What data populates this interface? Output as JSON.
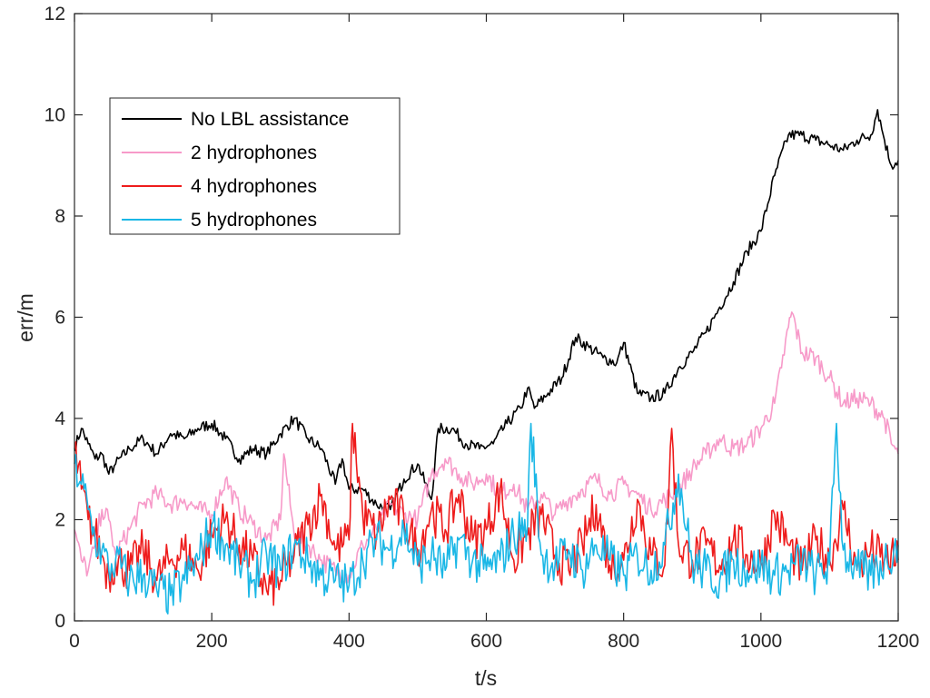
{
  "chart_data": {
    "type": "line",
    "title": "",
    "xlabel": "t/s",
    "ylabel": "err/m",
    "xlim": [
      0,
      1200
    ],
    "ylim": [
      0,
      12
    ],
    "xticks": [
      0,
      200,
      400,
      600,
      800,
      1000,
      1200
    ],
    "yticks": [
      0,
      2,
      4,
      6,
      8,
      10,
      12
    ],
    "grid": false,
    "legend_position": "upper-left",
    "series": [
      {
        "name": "No LBL assistance",
        "color": "#000000",
        "x": [
          0,
          10,
          20,
          30,
          40,
          50,
          60,
          80,
          100,
          120,
          140,
          160,
          180,
          200,
          220,
          240,
          260,
          280,
          300,
          320,
          340,
          360,
          380,
          390,
          400,
          420,
          440,
          460,
          480,
          500,
          520,
          530,
          550,
          570,
          590,
          610,
          630,
          650,
          660,
          670,
          690,
          710,
          730,
          750,
          770,
          790,
          800,
          820,
          840,
          860,
          880,
          900,
          920,
          940,
          960,
          980,
          1000,
          1020,
          1040,
          1060,
          1080,
          1100,
          1120,
          1140,
          1160,
          1170,
          1180,
          1190,
          1200
        ],
        "values": [
          3.4,
          3.8,
          3.5,
          3.2,
          3.3,
          2.9,
          3.1,
          3.4,
          3.6,
          3.3,
          3.7,
          3.6,
          3.8,
          3.9,
          3.6,
          3.2,
          3.4,
          3.3,
          3.7,
          4.0,
          3.6,
          3.4,
          2.7,
          3.2,
          2.6,
          2.6,
          2.3,
          2.2,
          2.8,
          3.1,
          2.4,
          3.8,
          3.8,
          3.5,
          3.4,
          3.5,
          3.9,
          4.2,
          4.6,
          4.2,
          4.5,
          4.8,
          5.6,
          5.4,
          5.2,
          5.1,
          5.5,
          4.5,
          4.4,
          4.5,
          5.0,
          5.3,
          5.7,
          6.2,
          6.7,
          7.3,
          7.7,
          8.8,
          9.6,
          9.6,
          9.5,
          9.4,
          9.3,
          9.5,
          9.6,
          10.1,
          9.5,
          9.0,
          9.1
        ]
      },
      {
        "name": "2 hydrophones",
        "color": "#f79ac9",
        "x": [
          0,
          10,
          20,
          30,
          40,
          50,
          60,
          80,
          100,
          120,
          140,
          160,
          180,
          200,
          220,
          240,
          260,
          280,
          300,
          305,
          320,
          340,
          360,
          380,
          400,
          420,
          440,
          460,
          480,
          500,
          520,
          540,
          560,
          580,
          600,
          620,
          640,
          660,
          680,
          700,
          720,
          740,
          760,
          780,
          800,
          820,
          840,
          860,
          880,
          900,
          920,
          940,
          960,
          980,
          1000,
          1020,
          1030,
          1040,
          1045,
          1060,
          1080,
          1100,
          1120,
          1140,
          1160,
          1180,
          1190,
          1200
        ],
        "values": [
          1.8,
          1.2,
          1.0,
          1.5,
          2.2,
          2.0,
          1.3,
          1.8,
          2.3,
          2.5,
          2.3,
          2.4,
          2.2,
          2.1,
          2.8,
          2.2,
          1.9,
          1.6,
          2.0,
          3.3,
          1.7,
          1.5,
          1.2,
          1.0,
          0.9,
          1.5,
          1.8,
          2.3,
          2.1,
          2.0,
          2.9,
          3.2,
          2.9,
          2.7,
          2.9,
          2.5,
          2.7,
          2.2,
          2.5,
          2.1,
          2.4,
          2.6,
          2.8,
          2.5,
          2.7,
          2.5,
          2.2,
          2.4,
          2.6,
          3.0,
          3.3,
          3.6,
          3.4,
          3.5,
          3.8,
          4.3,
          5.0,
          5.8,
          6.1,
          5.3,
          5.2,
          4.8,
          4.3,
          4.4,
          4.3,
          4.0,
          3.5,
          3.3
        ]
      },
      {
        "name": "4 hydrophones",
        "color": "#ee1c1c",
        "x": [
          0,
          10,
          20,
          30,
          40,
          50,
          60,
          80,
          100,
          120,
          140,
          160,
          180,
          200,
          220,
          240,
          260,
          280,
          300,
          320,
          340,
          360,
          380,
          400,
          405,
          420,
          440,
          460,
          480,
          500,
          520,
          540,
          560,
          580,
          600,
          620,
          640,
          660,
          680,
          700,
          720,
          740,
          760,
          780,
          800,
          820,
          840,
          860,
          870,
          880,
          900,
          920,
          940,
          960,
          980,
          1000,
          1020,
          1040,
          1060,
          1080,
          1100,
          1120,
          1140,
          1160,
          1180,
          1200
        ],
        "values": [
          3.4,
          2.6,
          2.0,
          1.7,
          1.3,
          0.9,
          1.2,
          1.0,
          1.4,
          0.8,
          1.2,
          1.4,
          1.0,
          1.7,
          2.0,
          1.5,
          1.2,
          0.6,
          0.8,
          1.3,
          1.9,
          2.5,
          1.4,
          1.6,
          3.9,
          2.1,
          1.7,
          2.4,
          2.0,
          1.4,
          2.2,
          1.8,
          2.5,
          1.6,
          1.8,
          2.6,
          1.2,
          1.7,
          2.1,
          1.3,
          1.0,
          1.5,
          2.3,
          1.1,
          1.2,
          2.4,
          1.3,
          1.1,
          3.8,
          1.5,
          1.2,
          1.5,
          1.1,
          1.6,
          1.3,
          1.1,
          2.1,
          1.5,
          1.0,
          1.6,
          1.2,
          2.2,
          1.0,
          1.4,
          1.2,
          1.2
        ]
      },
      {
        "name": "5 hydrophones",
        "color": "#1ab7e6",
        "x": [
          0,
          10,
          20,
          30,
          40,
          50,
          60,
          80,
          100,
          120,
          140,
          160,
          180,
          200,
          220,
          240,
          260,
          280,
          300,
          320,
          340,
          360,
          380,
          400,
          420,
          440,
          460,
          480,
          500,
          520,
          540,
          560,
          580,
          600,
          620,
          640,
          660,
          665,
          680,
          700,
          720,
          740,
          760,
          780,
          800,
          820,
          840,
          860,
          880,
          900,
          920,
          940,
          960,
          980,
          1000,
          1020,
          1040,
          1060,
          1080,
          1100,
          1110,
          1120,
          1140,
          1160,
          1180,
          1200
        ],
        "values": [
          3.1,
          2.7,
          2.2,
          1.6,
          1.4,
          1.0,
          1.2,
          0.8,
          0.9,
          0.6,
          0.5,
          0.8,
          1.2,
          1.9,
          1.5,
          1.1,
          0.8,
          1.3,
          1.0,
          1.5,
          1.2,
          0.9,
          0.8,
          0.7,
          1.2,
          1.6,
          1.4,
          1.8,
          1.1,
          1.3,
          1.0,
          1.6,
          1.2,
          1.0,
          1.2,
          1.7,
          1.9,
          3.9,
          1.3,
          1.1,
          1.4,
          1.0,
          1.5,
          1.2,
          0.9,
          1.3,
          1.0,
          1.5,
          2.9,
          1.1,
          1.0,
          0.8,
          1.2,
          1.0,
          1.1,
          0.9,
          1.0,
          1.2,
          0.9,
          1.1,
          3.9,
          1.4,
          1.0,
          0.9,
          1.2,
          1.5
        ]
      }
    ]
  }
}
